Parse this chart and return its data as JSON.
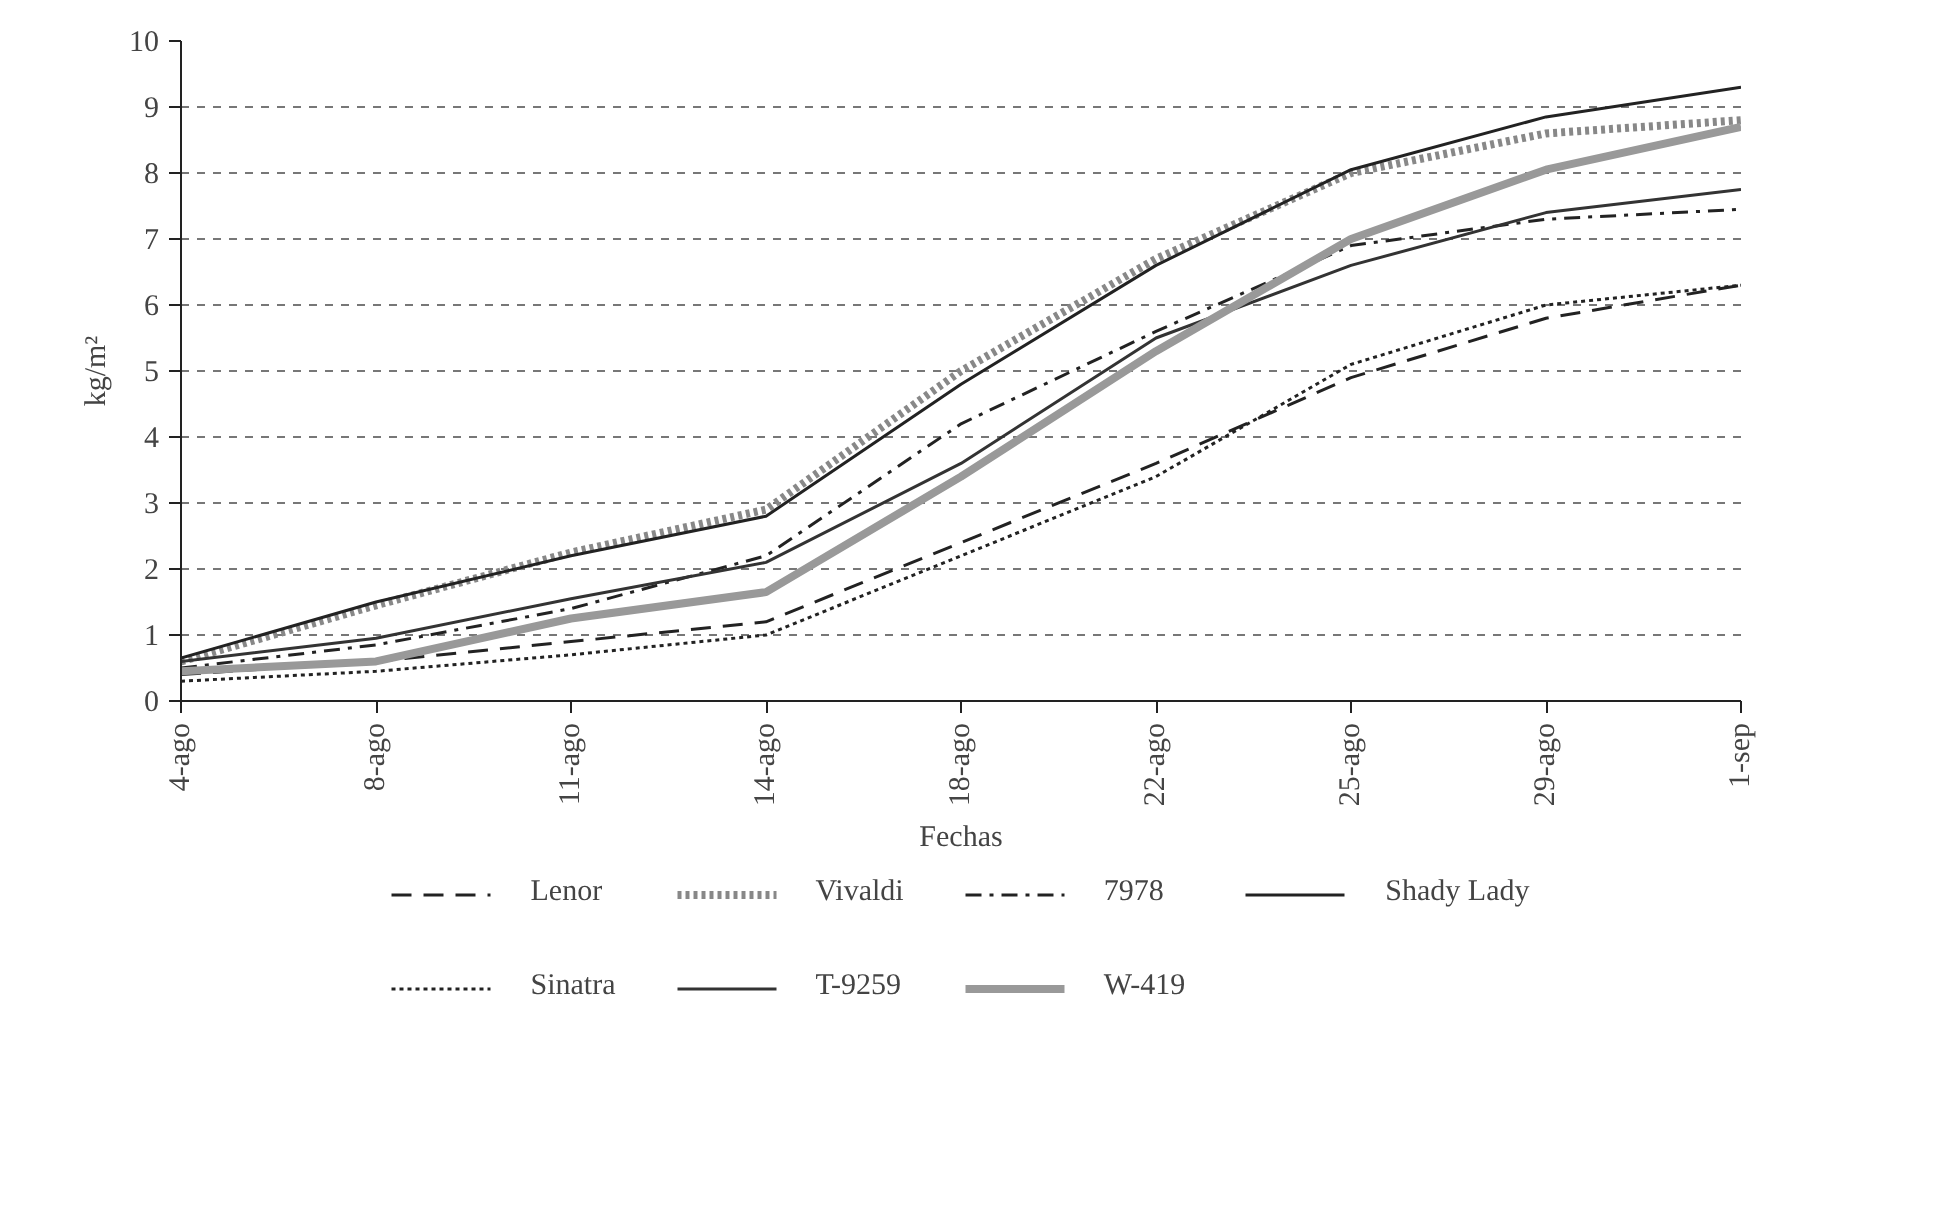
{
  "chart_data": {
    "type": "line",
    "xlabel": "Fechas",
    "ylabel": "kg/m²",
    "categories": [
      "4-ago",
      "8-ago",
      "11-ago",
      "14-ago",
      "18-ago",
      "22-ago",
      "25-ago",
      "29-ago",
      "1-sep"
    ],
    "series": [
      {
        "name": "Lenor",
        "color": "#222222",
        "line_style": "dashed",
        "values": [
          0.4,
          0.6,
          0.9,
          1.2,
          2.4,
          3.6,
          4.9,
          5.8,
          6.3
        ]
      },
      {
        "name": "Vivaldi",
        "color": "#888888",
        "line_style": "dotted",
        "values": [
          0.6,
          1.45,
          2.25,
          2.9,
          5.0,
          6.7,
          8.0,
          8.6,
          8.8
        ]
      },
      {
        "name": "7978",
        "color": "#222222",
        "line_style": "dashdot",
        "values": [
          0.5,
          0.85,
          1.4,
          2.2,
          4.2,
          5.6,
          6.9,
          7.3,
          7.45
        ]
      },
      {
        "name": "Shady Lady",
        "color": "#222222",
        "line_style": "solid",
        "values": [
          0.65,
          1.5,
          2.2,
          2.8,
          4.8,
          6.6,
          8.05,
          8.85,
          9.3
        ]
      },
      {
        "name": "Sinatra",
        "color": "#222222",
        "line_style": "dotted",
        "values": [
          0.3,
          0.45,
          0.7,
          1.0,
          2.2,
          3.4,
          5.1,
          6.0,
          6.3
        ]
      },
      {
        "name": "T-9259",
        "color": "#333333",
        "line_style": "solid",
        "values": [
          0.6,
          0.95,
          1.55,
          2.1,
          3.6,
          5.5,
          6.6,
          7.4,
          7.75
        ]
      },
      {
        "name": "W-419",
        "color": "#999999",
        "line_style": "solid",
        "values": [
          0.45,
          0.6,
          1.25,
          1.65,
          3.4,
          5.3,
          7.0,
          8.05,
          8.7
        ]
      }
    ],
    "ylim": [
      0,
      10
    ],
    "yticks": [
      0,
      1,
      2,
      3,
      4,
      5,
      6,
      7,
      8,
      9,
      10
    ],
    "grid": "y",
    "legend": "bottom"
  }
}
